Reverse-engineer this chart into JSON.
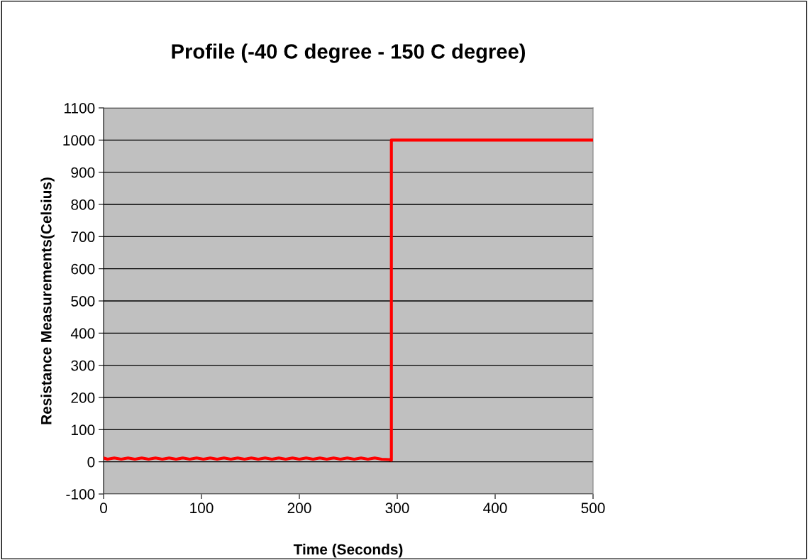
{
  "chart_data": {
    "type": "line",
    "title": "Profile (-40 C degree - 150 C degree)",
    "xlabel": "Time (Seconds)",
    "ylabel": "Resistance Measurements(Celsius)",
    "xlim": [
      0,
      500
    ],
    "xticks": [
      0,
      100,
      200,
      300,
      400,
      500
    ],
    "ylim": [
      -100,
      1100
    ],
    "yticks": [
      -100,
      0,
      100,
      200,
      300,
      400,
      500,
      600,
      700,
      800,
      900,
      1000,
      1100
    ],
    "grid": "y",
    "marker": "none",
    "line_style": "solid",
    "series": [
      {
        "color": "#ff0000",
        "x": [
          0,
          4,
          11,
          18,
          25,
          32,
          39,
          46,
          53,
          60,
          67,
          74,
          81,
          88,
          95,
          102,
          109,
          116,
          123,
          130,
          137,
          144,
          151,
          158,
          165,
          172,
          179,
          186,
          193,
          200,
          207,
          214,
          221,
          228,
          235,
          242,
          249,
          256,
          263,
          270,
          277,
          284,
          292,
          294,
          294,
          500
        ],
        "values": [
          12,
          8,
          12,
          8,
          12,
          8,
          12,
          8,
          12,
          8,
          12,
          8,
          12,
          8,
          12,
          8,
          12,
          8,
          12,
          8,
          12,
          8,
          12,
          8,
          12,
          8,
          12,
          8,
          12,
          8,
          12,
          8,
          12,
          8,
          12,
          8,
          12,
          8,
          12,
          8,
          12,
          8,
          7,
          5,
          1000,
          1000
        ]
      }
    ]
  }
}
